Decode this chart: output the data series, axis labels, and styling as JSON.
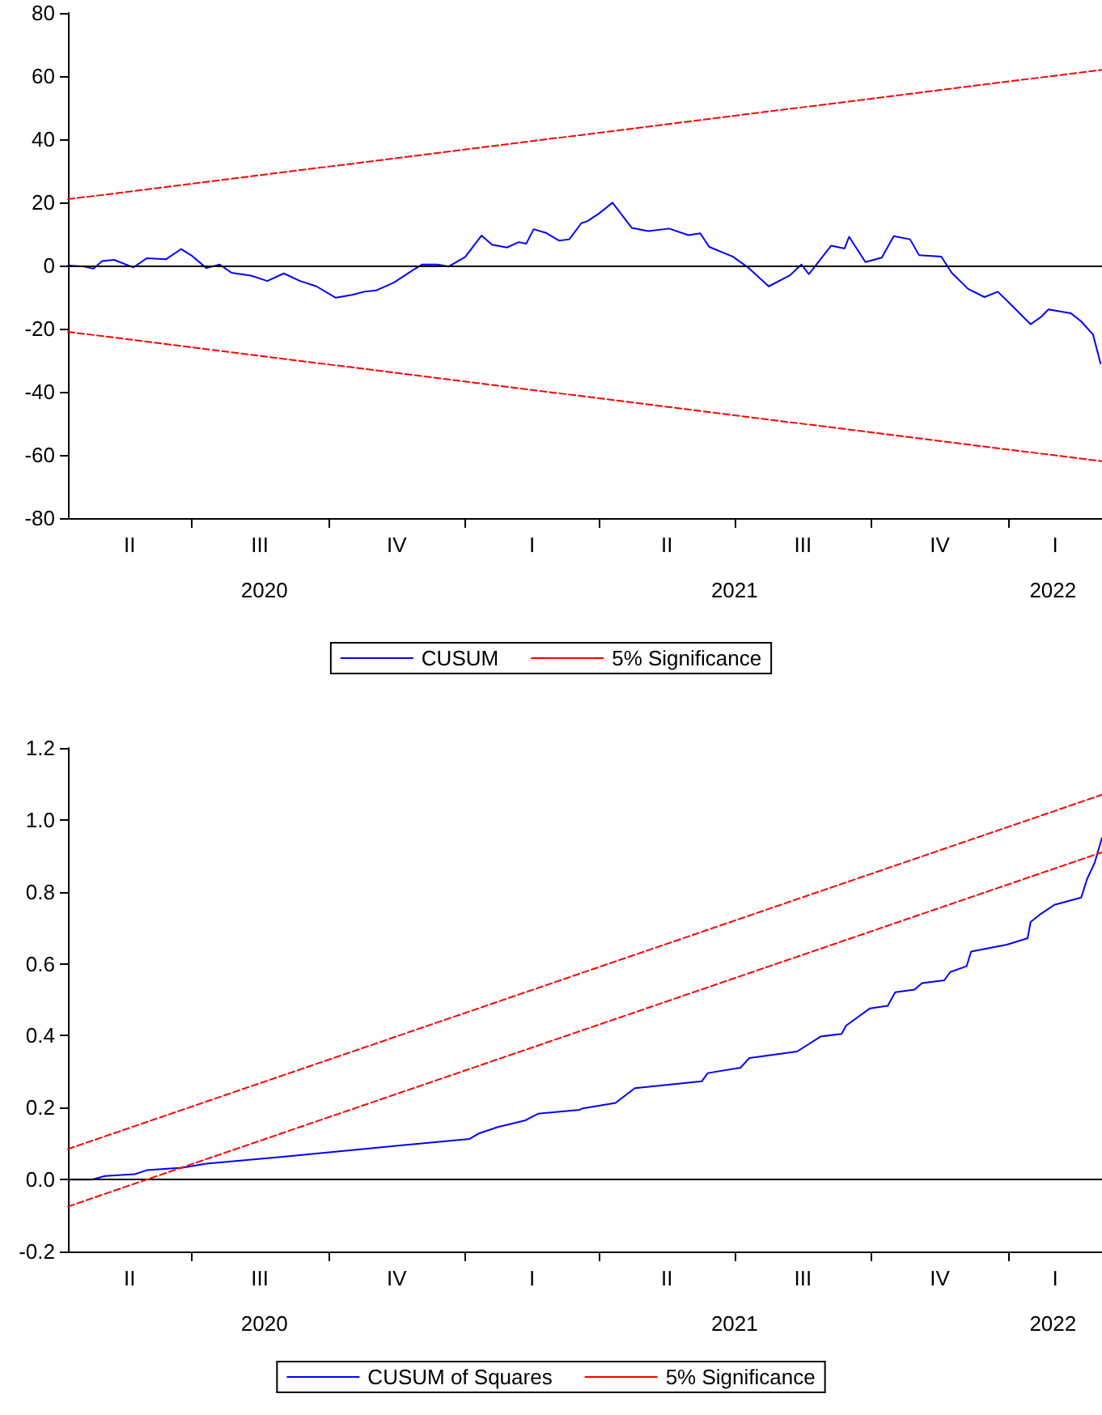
{
  "chart_data": [
    {
      "type": "line",
      "xlim": [
        "2020-04-09",
        "2022-03-05"
      ],
      "ylim": [
        -80,
        80
      ],
      "yticks": [
        -80,
        -60,
        -40,
        -20,
        0,
        20,
        40,
        60,
        80
      ],
      "xticks": [
        {
          "value": "2020-07-01",
          "label": null
        },
        {
          "value": "2020-08-19",
          "label": "2020"
        },
        {
          "value": "2020-10-01",
          "label": null
        },
        {
          "value": "2021-01-01",
          "label": null
        },
        {
          "value": "2021-04-01",
          "label": null
        },
        {
          "value": "2021-07-01",
          "label": null
        },
        {
          "value": "2021-07-01",
          "label": "2021"
        },
        {
          "value": "2021-10-01",
          "label": null
        },
        {
          "value": "2022-01-01",
          "label": null
        },
        {
          "value": "2022-01-31",
          "label": "2022"
        }
      ],
      "annotations": [
        "II",
        "III",
        "IV",
        "I",
        "II",
        "III",
        "IV",
        "I"
      ],
      "grid": false,
      "legend": "bottom",
      "marker": "none",
      "ref_lines": [
        {
          "axis": "y",
          "value": 0,
          "color": "#000000"
        }
      ],
      "series": [
        {
          "name": "CUSUM",
          "color": "#0000ff",
          "line_style": "solid",
          "x": [
            "2020-04-09",
            "2020-04-20",
            "2020-04-26",
            "2020-05-02",
            "2020-05-10",
            "2020-05-23",
            "2020-06-01",
            "2020-06-14",
            "2020-06-24",
            "2020-07-01",
            "2020-07-11",
            "2020-07-20",
            "2020-07-28",
            "2020-08-10",
            "2020-08-21",
            "2020-09-01",
            "2020-09-12",
            "2020-09-23",
            "2020-10-06",
            "2020-10-17",
            "2020-10-25",
            "2020-11-02",
            "2020-11-14",
            "2020-11-25",
            "2020-12-03",
            "2020-12-13",
            "2020-12-21",
            "2021-01-01",
            "2021-01-12",
            "2021-01-19",
            "2021-01-29",
            "2021-02-06",
            "2021-02-11",
            "2021-02-16",
            "2021-02-24",
            "2021-03-05",
            "2021-03-12",
            "2021-03-20",
            "2021-03-24",
            "2021-04-01",
            "2021-04-10",
            "2021-04-23",
            "2021-05-04",
            "2021-05-18",
            "2021-05-31",
            "2021-06-08",
            "2021-06-14",
            "2021-06-30",
            "2021-07-10",
            "2021-07-24",
            "2021-08-07",
            "2021-08-15",
            "2021-08-20",
            "2021-09-04",
            "2021-09-13",
            "2021-09-16",
            "2021-09-27",
            "2021-10-08",
            "2021-10-16",
            "2021-10-27",
            "2021-11-02",
            "2021-11-17",
            "2021-11-24",
            "2021-12-05",
            "2021-12-16",
            "2021-12-25",
            "2022-01-05",
            "2022-01-16",
            "2022-01-23",
            "2022-01-28",
            "2022-02-12",
            "2022-02-19",
            "2022-02-27",
            "2022-03-04"
          ],
          "values": [
            0,
            -0.3,
            -1,
            1.4,
            1.8,
            -0.6,
            2.3,
            2,
            5.2,
            3.2,
            -0.8,
            0.3,
            -2.3,
            -3.2,
            -4.9,
            -2.5,
            -4.9,
            -6.6,
            -10.2,
            -9.3,
            -8.3,
            -7.9,
            -5.4,
            -2,
            0.3,
            0.3,
            -0.3,
            2.7,
            9.5,
            6.6,
            5.7,
            7.4,
            6.9,
            11.5,
            10.4,
            7.9,
            8.3,
            13.4,
            14,
            16.5,
            19.9,
            11.9,
            10.9,
            11.7,
            9.6,
            10.2,
            5.9,
            2.8,
            -0.6,
            -6.6,
            -3.2,
            0.3,
            -2.7,
            6.3,
            5.4,
            9.1,
            1.1,
            2.5,
            9.3,
            8.3,
            3.3,
            2.8,
            -2.3,
            -7.4,
            -10,
            -8.3,
            -13.4,
            -18.6,
            -16.3,
            -13.9,
            -15.1,
            -17.7,
            -21.9,
            -31
          ]
        },
        {
          "name": "5% Significance",
          "color": "#ff0000",
          "line_style": "dashed",
          "x": [
            "2020-04-09",
            "2022-03-05"
          ],
          "values": [
            21,
            62
          ]
        },
        {
          "color": "#ff0000",
          "line_style": "dashed",
          "x": [
            "2020-04-09",
            "2022-03-05"
          ],
          "values": [
            -21,
            -62
          ]
        }
      ]
    },
    {
      "type": "line",
      "xlim": [
        "2020-04-09",
        "2022-03-05"
      ],
      "ylim": [
        -0.2,
        1.2
      ],
      "yticks": [
        {
          "value": -0.2,
          "label": "-0.2"
        },
        {
          "value": 0,
          "label": "0.0"
        },
        {
          "value": 0.2,
          "label": "0.2"
        },
        {
          "value": 0.4,
          "label": "0.4"
        },
        {
          "value": 0.6,
          "label": "0.6"
        },
        {
          "value": 0.8,
          "label": "0.8"
        },
        {
          "value": 1,
          "label": "1.0"
        },
        {
          "value": 1.2,
          "label": "1.2"
        }
      ],
      "xticks": [
        {
          "value": "2020-07-01",
          "label": null
        },
        {
          "value": "2020-08-19",
          "label": "2020"
        },
        {
          "value": "2020-10-01",
          "label": null
        },
        {
          "value": "2021-01-01",
          "label": null
        },
        {
          "value": "2021-04-01",
          "label": null
        },
        {
          "value": "2021-07-01",
          "label": null
        },
        {
          "value": "2021-07-01",
          "label": "2021"
        },
        {
          "value": "2021-10-01",
          "label": null
        },
        {
          "value": "2022-01-01",
          "label": null
        },
        {
          "value": "2022-01-31",
          "label": "2022"
        }
      ],
      "annotations": [
        "II",
        "III",
        "IV",
        "I",
        "II",
        "III",
        "IV",
        "I"
      ],
      "grid": false,
      "legend": "bottom",
      "marker": "none",
      "ref_lines": [
        {
          "axis": "y",
          "value": 0,
          "color": "#000000"
        }
      ],
      "series": [
        {
          "name": "CUSUM of Squares",
          "color": "#0000ff",
          "line_style": "solid",
          "x": [
            "2020-04-09",
            "2020-04-25",
            "2020-05-04",
            "2020-05-24",
            "2020-06-01",
            "2020-06-25",
            "2020-07-11",
            "2020-08-30",
            "2020-10-27",
            "2021-01-04",
            "2021-01-10",
            "2021-01-23",
            "2021-02-10",
            "2021-02-19",
            "2021-03-19",
            "2021-03-21",
            "2021-04-12",
            "2021-04-25",
            "2021-06-09",
            "2021-06-13",
            "2021-07-05",
            "2021-07-11",
            "2021-08-12",
            "2021-08-28",
            "2021-09-11",
            "2021-09-14",
            "2021-09-30",
            "2021-10-12",
            "2021-10-17",
            "2021-10-30",
            "2021-11-04",
            "2021-11-19",
            "2021-11-23",
            "2021-12-04",
            "2021-12-07",
            "2021-12-31",
            "2022-01-14",
            "2022-01-16",
            "2022-01-23",
            "2022-02-01",
            "2022-02-19",
            "2022-02-23",
            "2022-02-28",
            "2022-03-05"
          ],
          "values": [
            0,
            0,
            0.01,
            0.015,
            0.026,
            0.033,
            0.044,
            0.063,
            0.086,
            0.113,
            0.128,
            0.146,
            0.164,
            0.183,
            0.194,
            0.198,
            0.213,
            0.254,
            0.273,
            0.296,
            0.311,
            0.338,
            0.356,
            0.398,
            0.405,
            0.428,
            0.476,
            0.483,
            0.521,
            0.528,
            0.546,
            0.554,
            0.577,
            0.593,
            0.634,
            0.653,
            0.671,
            0.716,
            0.739,
            0.764,
            0.784,
            0.836,
            0.88,
            0.95
          ]
        },
        {
          "name": "5% Significance",
          "color": "#ff0000",
          "line_style": "dashed",
          "x": [
            "2020-04-09",
            "2022-03-05"
          ],
          "values": [
            0.085,
            1.07
          ]
        },
        {
          "color": "#ff0000",
          "line_style": "dashed",
          "x": [
            "2020-04-09",
            "2022-03-05"
          ],
          "values": [
            -0.075,
            0.91
          ]
        }
      ]
    }
  ]
}
